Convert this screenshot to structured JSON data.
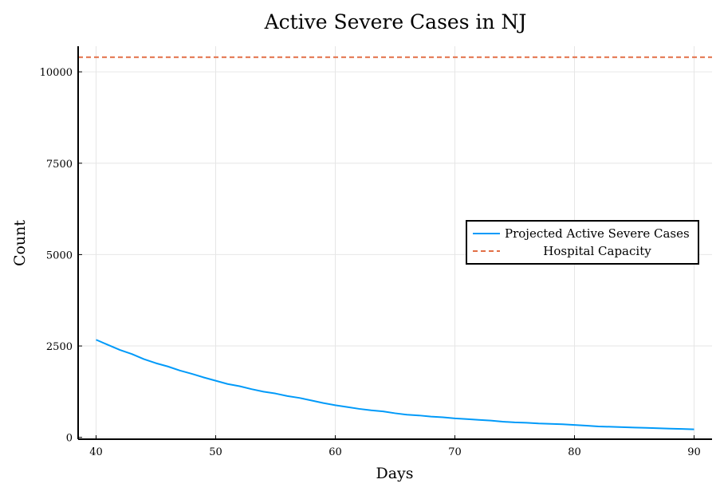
{
  "chart_data": {
    "type": "line",
    "title": "Active Severe Cases in NJ",
    "xlabel": "Days",
    "ylabel": "Count",
    "xlim": [
      38.5,
      91.5
    ],
    "ylim": [
      -50,
      10700
    ],
    "xticks": [
      40,
      50,
      60,
      70,
      80,
      90
    ],
    "yticks": [
      0,
      2500,
      5000,
      7500,
      10000
    ],
    "grid": true,
    "legend_position": "right",
    "series": [
      {
        "name": "Projected Active Severe Cases",
        "color": "#009af9",
        "style": "solid",
        "x": [
          40,
          41,
          42,
          43,
          44,
          45,
          46,
          47,
          48,
          49,
          50,
          51,
          52,
          53,
          54,
          55,
          56,
          57,
          58,
          59,
          60,
          61,
          62,
          63,
          64,
          65,
          66,
          67,
          68,
          69,
          70,
          71,
          72,
          73,
          74,
          75,
          76,
          77,
          78,
          79,
          80,
          81,
          82,
          83,
          84,
          85,
          86,
          87,
          88,
          89,
          90
        ],
        "values": [
          2670,
          2530,
          2390,
          2280,
          2140,
          2030,
          1940,
          1830,
          1740,
          1640,
          1550,
          1460,
          1400,
          1320,
          1250,
          1200,
          1130,
          1080,
          1010,
          940,
          880,
          830,
          780,
          740,
          710,
          660,
          620,
          600,
          570,
          550,
          520,
          500,
          480,
          460,
          430,
          410,
          400,
          380,
          370,
          360,
          340,
          320,
          300,
          290,
          280,
          270,
          260,
          250,
          240,
          230,
          220
        ]
      },
      {
        "name": "Hospital Capacity",
        "color": "#e26f46",
        "style": "dashed",
        "x": [
          38.5,
          91.5
        ],
        "values": [
          10400,
          10400
        ]
      }
    ]
  }
}
